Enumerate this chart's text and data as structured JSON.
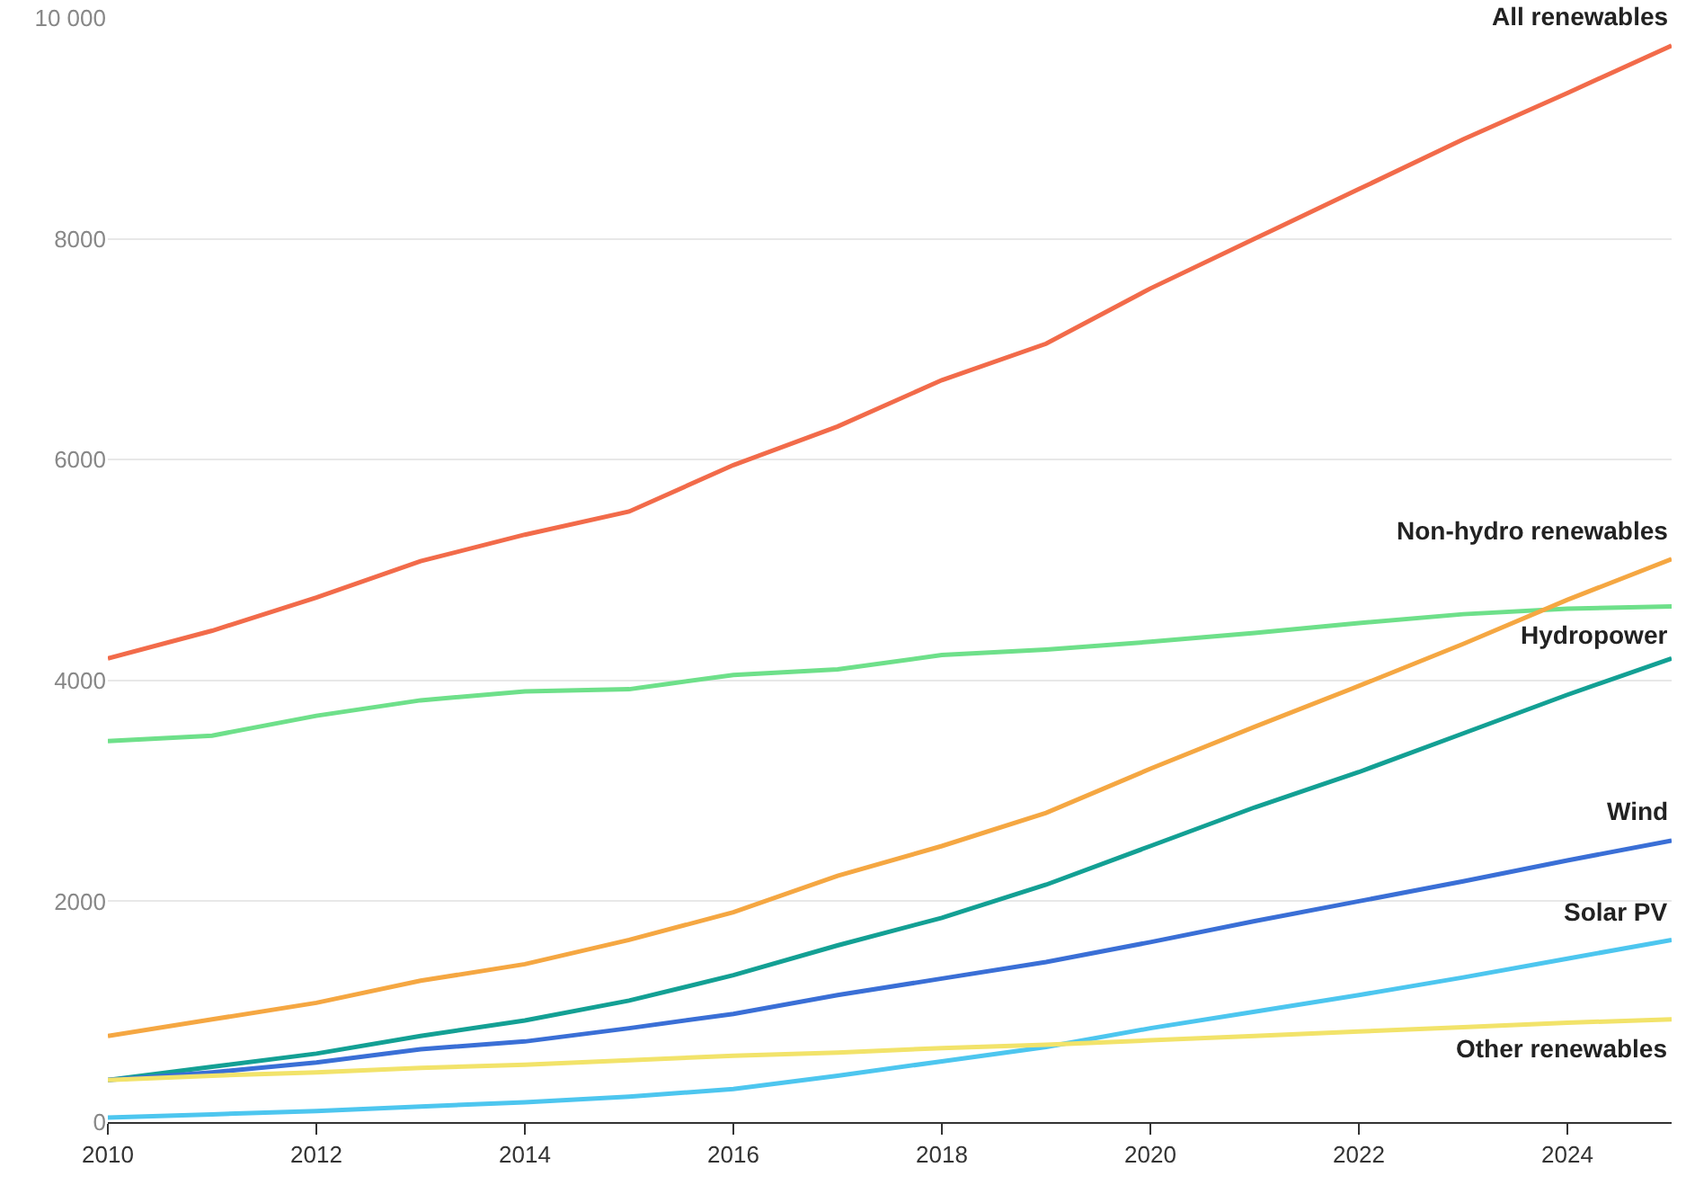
{
  "chart_data": {
    "type": "line",
    "x": [
      2010,
      2011,
      2012,
      2013,
      2014,
      2015,
      2016,
      2017,
      2018,
      2019,
      2020,
      2021,
      2022,
      2023,
      2024,
      2025
    ],
    "xlim": [
      2010,
      2025
    ],
    "xticks": [
      2010,
      2012,
      2014,
      2016,
      2018,
      2020,
      2022,
      2024
    ],
    "ylim": [
      0,
      10000
    ],
    "yticks": [
      0,
      2000,
      4000,
      6000,
      8000,
      {
        "value": 10000,
        "label": "10 000"
      }
    ],
    "grid": "y",
    "legend": false,
    "marker": "none",
    "line_style": "solid",
    "series": [
      {
        "name": "All renewables",
        "color": "#f26b4a",
        "values": [
          4200,
          4450,
          4750,
          5080,
          5320,
          5530,
          5950,
          6300,
          6720,
          7050,
          7550,
          8000,
          8450,
          8900,
          9320,
          9750
        ]
      },
      {
        "name": "Hydropower",
        "color": "#6ee08a",
        "values": [
          3450,
          3500,
          3680,
          3820,
          3900,
          3920,
          4050,
          4100,
          4230,
          4280,
          4350,
          4430,
          4520,
          4600,
          4650,
          4670
        ]
      },
      {
        "name": "Non-hydro renewables",
        "color": "#f5a742",
        "values": [
          780,
          930,
          1080,
          1280,
          1430,
          1650,
          1900,
          2230,
          2500,
          2800,
          3200,
          3580,
          3950,
          4330,
          4730,
          5100
        ]
      },
      {
        "color": "#13a094",
        "values": [
          380,
          500,
          620,
          780,
          920,
          1100,
          1330,
          1600,
          1850,
          2150,
          2500,
          2850,
          3170,
          3520,
          3870,
          4200
        ]
      },
      {
        "name": "Wind",
        "color": "#3a6fd6",
        "values": [
          380,
          450,
          540,
          660,
          730,
          850,
          980,
          1150,
          1300,
          1450,
          1630,
          1820,
          2000,
          2180,
          2370,
          2550
        ]
      },
      {
        "name": "Solar PV",
        "color": "#4dc6ef",
        "values": [
          40,
          70,
          100,
          140,
          180,
          230,
          300,
          420,
          550,
          680,
          850,
          1000,
          1150,
          1310,
          1480,
          1650
        ]
      },
      {
        "name": "Other renewables",
        "color": "#f2e36a",
        "values": [
          380,
          420,
          450,
          490,
          520,
          560,
          600,
          630,
          670,
          700,
          740,
          780,
          820,
          860,
          900,
          930
        ]
      }
    ]
  }
}
